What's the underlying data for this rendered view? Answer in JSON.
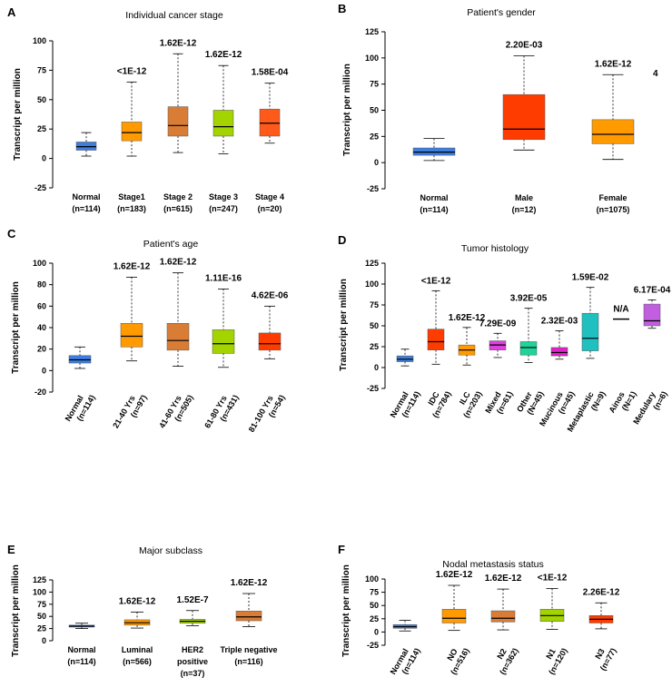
{
  "figure_annotation": "4",
  "chart_data": [
    {
      "letter": "A",
      "type": "box",
      "title": "Individual cancer stage",
      "ylabel": "Transcript per million",
      "ylim": [
        -25,
        100
      ],
      "yticks": [
        "100",
        "75",
        "50",
        "25",
        "0",
        "-25"
      ],
      "groups": [
        {
          "label": "Normal",
          "n": "(n=114)",
          "pvalue": "",
          "color": "#3e7ee0",
          "min": 2,
          "q1": 7,
          "median": 10,
          "q3": 14,
          "max": 22
        },
        {
          "label": "Stage1",
          "n": "(n=183)",
          "pvalue": "<1E-12",
          "color": "#ff9a00",
          "min": 2,
          "q1": 15,
          "median": 22,
          "q3": 31,
          "max": 65
        },
        {
          "label": "Stage 2",
          "n": "(n=615)",
          "pvalue": "1.62E-12",
          "color": "#d97c36",
          "min": 5,
          "q1": 19,
          "median": 28,
          "q3": 44,
          "max": 89
        },
        {
          "label": "Stage 3",
          "n": "(n=247)",
          "pvalue": "1.62E-12",
          "color": "#a4d400",
          "min": 4,
          "q1": 19,
          "median": 27,
          "q3": 41,
          "max": 79
        },
        {
          "label": "Stage 4",
          "n": "(n=20)",
          "pvalue": "1.58E-04",
          "color": "#ff5a1a",
          "min": 13,
          "q1": 19,
          "median": 30,
          "q3": 42,
          "max": 64
        }
      ]
    },
    {
      "letter": "B",
      "type": "box",
      "title": "Patient's gender",
      "ylabel": "Transcript per million",
      "ylim": [
        -25,
        125
      ],
      "yticks": [
        "125",
        "100",
        "75",
        "50",
        "25",
        "0",
        "-25"
      ],
      "groups": [
        {
          "label": "Normal",
          "n": "(n=114)",
          "pvalue": "",
          "color": "#3e7ee0",
          "min": 2,
          "q1": 7,
          "median": 10,
          "q3": 14,
          "max": 23
        },
        {
          "label": "Male",
          "n": "(n=12)",
          "pvalue": "2.20E-03",
          "color": "#ff3c00",
          "min": 12,
          "q1": 22,
          "median": 32,
          "q3": 65,
          "max": 102
        },
        {
          "label": "Female",
          "n": "(n=1075)",
          "pvalue": "1.62E-12",
          "color": "#ff9a00",
          "min": 3,
          "q1": 18,
          "median": 27,
          "q3": 41,
          "max": 84
        }
      ]
    },
    {
      "letter": "C",
      "type": "box",
      "title": "Patient's age",
      "ylabel": "Transcript per million",
      "ylim": [
        -20,
        100
      ],
      "yticks": [
        "100",
        "80",
        "60",
        "40",
        "20",
        "0",
        "-20"
      ],
      "groups": [
        {
          "label": "Normal",
          "n": "(n=114)",
          "pvalue": "",
          "color": "#3e7ee0",
          "min": 2,
          "q1": 7,
          "median": 10,
          "q3": 14,
          "max": 22
        },
        {
          "label": "21-40 Yrs",
          "n": "(n=97)",
          "pvalue": "1.62E-12",
          "color": "#ff9a00",
          "min": 9,
          "q1": 22,
          "median": 32,
          "q3": 44,
          "max": 87
        },
        {
          "label": "41-60 Yrs",
          "n": "(n=505)",
          "pvalue": "1.62E-12",
          "color": "#d97c36",
          "min": 4,
          "q1": 19,
          "median": 28,
          "q3": 44,
          "max": 91
        },
        {
          "label": "61-80 Yrs",
          "n": "(n=431)",
          "pvalue": "1.11E-16",
          "color": "#a4d400",
          "min": 3,
          "q1": 16,
          "median": 25,
          "q3": 38,
          "max": 76
        },
        {
          "label": "81-100 Yrs",
          "n": "(n=54)",
          "pvalue": "4.62E-06",
          "color": "#ff3c00",
          "min": 11,
          "q1": 19,
          "median": 25,
          "q3": 35,
          "max": 60
        }
      ]
    },
    {
      "letter": "D",
      "type": "box",
      "title": "Tumor histology",
      "ylabel": "Transcript per million",
      "ylim": [
        -25,
        125
      ],
      "yticks": [
        "125",
        "100",
        "75",
        "50",
        "25",
        "0",
        "-25"
      ],
      "groups": [
        {
          "label": "Normal",
          "n": "(n=114)",
          "pvalue": "",
          "color": "#3e7ee0",
          "min": 2,
          "q1": 7,
          "median": 10,
          "q3": 14,
          "max": 22
        },
        {
          "label": "IDC",
          "n": "(n=784)",
          "pvalue": "<1E-12",
          "color": "#ff3c00",
          "min": 4,
          "q1": 21,
          "median": 31,
          "q3": 46,
          "max": 92
        },
        {
          "label": "ILC",
          "n": "(n=203)",
          "pvalue": "1.62E-12",
          "color": "#ff9a00",
          "min": 3,
          "q1": 15,
          "median": 21,
          "q3": 27,
          "max": 48
        },
        {
          "label": "Mixed",
          "n": "(n=61)",
          "pvalue": "7.29E-09",
          "color": "#e040e0",
          "min": 12,
          "q1": 21,
          "median": 27,
          "q3": 32,
          "max": 41
        },
        {
          "label": "Other",
          "n": "(N=45)",
          "pvalue": "3.92E-05",
          "color": "#1fd39a",
          "min": 6,
          "q1": 15,
          "median": 24,
          "q3": 31,
          "max": 71
        },
        {
          "label": "Mucinous",
          "n": "(n=45)",
          "pvalue": "2.32E-03",
          "color": "#e020c8",
          "min": 10,
          "q1": 14,
          "median": 18,
          "q3": 24,
          "max": 44
        },
        {
          "label": "Metaplastic",
          "n": "(N=9)",
          "pvalue": "1.59E-02",
          "color": "#20c0c0",
          "min": 11,
          "q1": 20,
          "median": 35,
          "q3": 65,
          "max": 96
        },
        {
          "label": "Ainos",
          "n": "(N=1)",
          "pvalue": "N/A",
          "color": "#3e7ee0",
          "min": 58,
          "q1": 58,
          "median": 58,
          "q3": 58,
          "max": 58
        },
        {
          "label": "Medulary",
          "n": "(n=6)",
          "pvalue": "6.17E-04",
          "color": "#c25ee0",
          "min": 47,
          "q1": 50,
          "median": 56,
          "q3": 76,
          "max": 81
        }
      ]
    },
    {
      "letter": "E",
      "type": "box",
      "title": "Major subclass",
      "ylabel": "Transcript per million",
      "ylim": [
        0,
        125
      ],
      "yticks": [
        "125",
        "100",
        "75",
        "50",
        "25",
        "0"
      ],
      "groups": [
        {
          "label": "Normal",
          "sub": "",
          "n": "(n=114)",
          "pvalue": "",
          "color": "#3e7ee0",
          "min": 25,
          "q1": 28,
          "median": 30,
          "q3": 32,
          "max": 36
        },
        {
          "label": "Luminal",
          "sub": "",
          "n": "(n=566)",
          "pvalue": "1.62E-12",
          "color": "#ff9a00",
          "min": 26,
          "q1": 32,
          "median": 37,
          "q3": 43,
          "max": 59
        },
        {
          "label": "HER2",
          "sub": "positive",
          "n": "(n=37)",
          "pvalue": "1.52E-7",
          "color": "#a4d400",
          "min": 31,
          "q1": 36,
          "median": 40,
          "q3": 44,
          "max": 62
        },
        {
          "label": "Triple negative",
          "sub": "",
          "n": "(n=116)",
          "pvalue": "1.62E-12",
          "color": "#d97c36",
          "min": 29,
          "q1": 41,
          "median": 49,
          "q3": 61,
          "max": 97
        }
      ]
    },
    {
      "letter": "F",
      "type": "box",
      "title": "Nodal metastasis status",
      "ylabel": "Transcript per million",
      "ylim": [
        -25,
        100
      ],
      "yticks": [
        "100",
        "75",
        "50",
        "25",
        "0",
        "-25"
      ],
      "groups": [
        {
          "label": "Normal",
          "n": "(n=114)",
          "pvalue": "",
          "color": "#3e7ee0",
          "min": 2,
          "q1": 7,
          "median": 10,
          "q3": 14,
          "max": 22
        },
        {
          "label": "NO",
          "n": "(n=516)",
          "pvalue": "1.62E-12",
          "color": "#ff9a00",
          "min": 3,
          "q1": 17,
          "median": 26,
          "q3": 43,
          "max": 88
        },
        {
          "label": "N2",
          "n": "(n=362)",
          "pvalue": "1.62E-12",
          "color": "#d97c36",
          "min": 4,
          "q1": 19,
          "median": 26,
          "q3": 40,
          "max": 81
        },
        {
          "label": "N1",
          "n": "(n=120)",
          "pvalue": "<1E-12",
          "color": "#a4d400",
          "min": 5,
          "q1": 20,
          "median": 31,
          "q3": 43,
          "max": 82
        },
        {
          "label": "N3",
          "n": "(n=77)",
          "pvalue": "2.26E-12",
          "color": "#ff3c00",
          "min": 6,
          "q1": 17,
          "median": 24,
          "q3": 31,
          "max": 55
        }
      ]
    }
  ]
}
